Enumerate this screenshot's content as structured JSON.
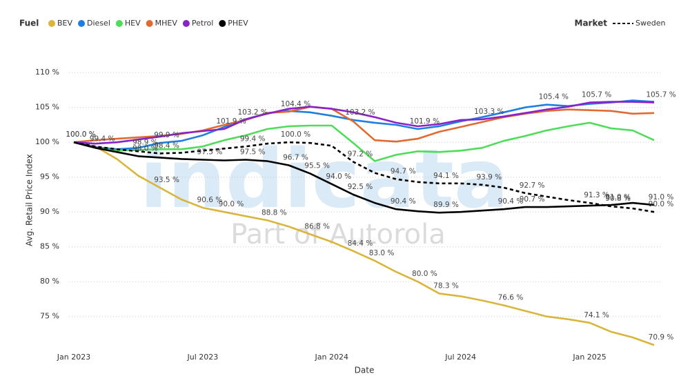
{
  "chart_data": {
    "type": "line",
    "legend_title": "Fuel",
    "market_legend_title": "Market",
    "y_label": "Avg. Retail Price Index",
    "x_label": "Date",
    "watermark": "indicata",
    "watermark_sub": "Part of Autorola",
    "grid": true,
    "x": [
      "2023-01",
      "2023-02",
      "2023-03",
      "2023-04",
      "2023-05",
      "2023-06",
      "2023-07",
      "2023-08",
      "2023-09",
      "2023-10",
      "2023-11",
      "2023-12",
      "2024-01",
      "2024-02",
      "2024-03",
      "2024-04",
      "2024-05",
      "2024-06",
      "2024-07",
      "2024-08",
      "2024-09",
      "2024-10",
      "2024-11",
      "2024-12",
      "2025-01",
      "2025-02",
      "2025-03",
      "2025-04"
    ],
    "xticks": [
      {
        "value": "2023-01",
        "label": "Jan 2023"
      },
      {
        "value": "2023-07",
        "label": "Jul 2023"
      },
      {
        "value": "2024-01",
        "label": "Jan 2024"
      },
      {
        "value": "2024-07",
        "label": "Jul 2024"
      },
      {
        "value": "2025-01",
        "label": "Jan 2025"
      }
    ],
    "ylim": [
      72,
      112
    ],
    "yticks": [
      {
        "value": 75,
        "label": "75 %"
      },
      {
        "value": 80,
        "label": "80 %"
      },
      {
        "value": 85,
        "label": "85 %"
      },
      {
        "value": 90,
        "label": "90 %"
      },
      {
        "value": 95,
        "label": "95 %"
      },
      {
        "value": 100,
        "label": "100 %"
      },
      {
        "value": 105,
        "label": "105 %"
      },
      {
        "value": 110,
        "label": "110 %"
      }
    ],
    "series": [
      {
        "name": "BEV",
        "color": "#d9b53b",
        "values": [
          100.0,
          99.4,
          97.6,
          95.2,
          93.5,
          91.8,
          90.6,
          90.0,
          89.4,
          88.8,
          87.9,
          86.8,
          85.7,
          84.4,
          83.0,
          81.4,
          80.0,
          78.3,
          77.9,
          77.3,
          76.6,
          75.8,
          75.0,
          74.6,
          74.1,
          72.8,
          72.0,
          70.9
        ],
        "value_labels": [
          "100.0 %",
          "99.4 %",
          null,
          null,
          "93.5 %",
          null,
          "90.6 %",
          "90.0 %",
          null,
          "88.8 %",
          null,
          "86.8 %",
          null,
          "84.4 %",
          "83.0 %",
          null,
          "80.0 %",
          "78.3 %",
          null,
          null,
          "76.6 %",
          null,
          null,
          null,
          "74.1 %",
          null,
          null,
          "70.9 %"
        ]
      },
      {
        "name": "Diesel",
        "color": "#1f7fe0",
        "values": [
          100.0,
          99.3,
          99.0,
          99.2,
          99.9,
          100.2,
          101.0,
          102.2,
          103.3,
          104.2,
          104.5,
          104.3,
          103.8,
          103.2,
          102.8,
          102.5,
          101.9,
          102.3,
          103.0,
          103.6,
          104.3,
          105.0,
          105.4,
          105.2,
          105.5,
          105.7,
          106.0,
          105.8
        ],
        "value_labels": [
          null,
          null,
          null,
          null,
          "99.9 %",
          null,
          null,
          null,
          null,
          null,
          null,
          null,
          null,
          "103.2 %",
          null,
          null,
          "101.9 %",
          null,
          null,
          null,
          null,
          null,
          "105.4 %",
          null,
          null,
          null,
          null,
          null
        ]
      },
      {
        "name": "HEV",
        "color": "#4fdc5a",
        "values": [
          100.0,
          99.2,
          98.8,
          98.9,
          99.0,
          99.0,
          99.4,
          100.3,
          101.0,
          101.9,
          102.3,
          102.4,
          102.4,
          99.9,
          97.3,
          98.2,
          98.7,
          98.6,
          98.8,
          99.2,
          100.2,
          100.9,
          101.7,
          102.3,
          102.8,
          102.0,
          101.7,
          100.3
        ],
        "value_labels": [
          null,
          null,
          null,
          "98.9 %",
          null,
          null,
          null,
          null,
          null,
          null,
          null,
          null,
          null,
          null,
          null,
          null,
          null,
          null,
          null,
          null,
          null,
          null,
          null,
          null,
          null,
          null,
          null,
          null
        ]
      },
      {
        "name": "MHEV",
        "color": "#e06a30",
        "values": [
          100.0,
          100.3,
          100.5,
          100.7,
          100.9,
          101.2,
          101.7,
          102.5,
          103.2,
          104.2,
          104.4,
          105.1,
          104.8,
          103.0,
          100.3,
          100.1,
          100.5,
          101.5,
          102.2,
          102.9,
          103.6,
          104.1,
          104.5,
          104.7,
          104.6,
          104.5,
          104.1,
          104.2
        ],
        "value_labels": [
          null,
          null,
          null,
          null,
          null,
          null,
          null,
          null,
          "103.2 %",
          null,
          "104.4 %",
          null,
          null,
          null,
          null,
          null,
          null,
          null,
          null,
          null,
          null,
          null,
          null,
          null,
          null,
          null,
          null,
          null
        ]
      },
      {
        "name": "Petrol",
        "color": "#8b22c8",
        "values": [
          100.0,
          99.8,
          100.0,
          100.4,
          100.8,
          101.3,
          101.6,
          101.9,
          103.3,
          104.1,
          104.8,
          105.1,
          104.8,
          104.3,
          103.6,
          102.8,
          102.3,
          102.6,
          103.2,
          103.3,
          103.7,
          104.2,
          104.7,
          105.1,
          105.7,
          105.8,
          105.8,
          105.7
        ],
        "value_labels": [
          null,
          null,
          null,
          null,
          null,
          null,
          null,
          "101.9 %",
          null,
          null,
          null,
          null,
          null,
          null,
          null,
          null,
          null,
          null,
          null,
          "103.3 %",
          null,
          null,
          null,
          null,
          "105.7 %",
          null,
          null,
          "105.7 %"
        ]
      },
      {
        "name": "PHEV",
        "color": "#000000",
        "values": [
          100.0,
          99.2,
          98.6,
          98.0,
          97.8,
          97.6,
          97.5,
          97.4,
          97.5,
          97.3,
          96.7,
          95.5,
          94.0,
          92.5,
          91.3,
          90.4,
          90.1,
          89.9,
          90.0,
          90.2,
          90.4,
          90.7,
          90.7,
          90.8,
          90.9,
          91.0,
          91.3,
          91.0
        ],
        "value_labels": [
          null,
          null,
          null,
          "98.0 %",
          null,
          null,
          "97.5 %",
          null,
          "97.5 %",
          null,
          "96.7 %",
          "95.5 %",
          "94.0 %",
          "92.5 %",
          null,
          "90.4 %",
          null,
          "89.9 %",
          null,
          null,
          "90.4 %",
          "90.7 %",
          null,
          null,
          null,
          "91.0 %",
          null,
          "91.0 %"
        ]
      }
    ],
    "market_series": [
      {
        "name": "Sweden",
        "color": "#000000",
        "dashed": true,
        "values": [
          100.0,
          99.4,
          99.0,
          98.7,
          98.4,
          98.5,
          98.8,
          99.1,
          99.4,
          99.8,
          100.0,
          99.9,
          99.5,
          97.2,
          95.6,
          94.7,
          94.3,
          94.1,
          94.1,
          93.9,
          93.5,
          92.7,
          92.2,
          91.7,
          91.3,
          90.8,
          90.5,
          90.0
        ],
        "value_labels": [
          "100.0 %",
          null,
          null,
          null,
          "98.4 %",
          null,
          null,
          null,
          "99.4 %",
          null,
          "100.0 %",
          null,
          null,
          "97.2 %",
          null,
          "94.7 %",
          null,
          "94.1 %",
          null,
          "93.9 %",
          null,
          "92.7 %",
          null,
          null,
          "91.3 %",
          "90.8 %",
          null,
          "90.0 %"
        ]
      }
    ]
  }
}
